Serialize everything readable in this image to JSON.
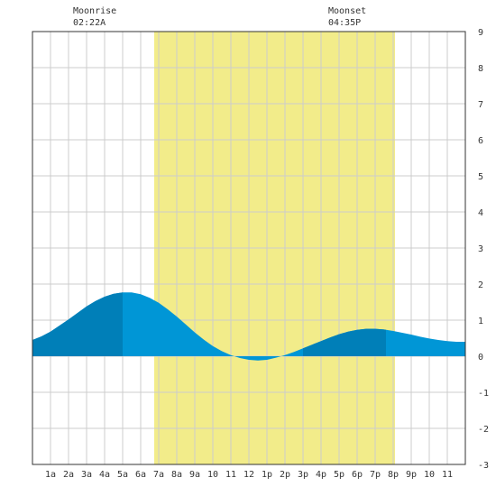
{
  "chart_data": {
    "type": "area",
    "title": "",
    "xlabel": "",
    "ylabel": "",
    "x_tick_labels": [
      "1a",
      "2a",
      "3a",
      "4a",
      "5a",
      "6a",
      "7a",
      "8a",
      "9a",
      "10",
      "11",
      "12",
      "1p",
      "2p",
      "3p",
      "4p",
      "5p",
      "6p",
      "7p",
      "8p",
      "9p",
      "10",
      "11"
    ],
    "x_range_hours": [
      0,
      24
    ],
    "y_ticks": [
      9,
      8,
      7,
      6,
      5,
      4,
      3,
      2,
      1,
      0,
      -1,
      -2,
      -3
    ],
    "ylim": [
      -3,
      9
    ],
    "grid": true,
    "daylight_hours": {
      "start": 6.75,
      "end": 20.1
    },
    "tide": {
      "hours": [
        0,
        0.5,
        1,
        1.5,
        2,
        2.5,
        3,
        3.5,
        4,
        4.5,
        5,
        5.5,
        6,
        6.5,
        7,
        7.5,
        8,
        8.5,
        9,
        9.5,
        10,
        10.5,
        11,
        11.5,
        12,
        12.5,
        13,
        13.5,
        14,
        14.5,
        15,
        15.5,
        16,
        16.5,
        17,
        17.5,
        18,
        18.5,
        19,
        19.5,
        20,
        20.5,
        21,
        21.5,
        22,
        22.5,
        23,
        23.5,
        24
      ],
      "heights": [
        0.45,
        0.55,
        0.68,
        0.85,
        1.02,
        1.2,
        1.38,
        1.53,
        1.65,
        1.73,
        1.77,
        1.77,
        1.72,
        1.62,
        1.48,
        1.3,
        1.1,
        0.88,
        0.66,
        0.46,
        0.28,
        0.14,
        0.03,
        -0.05,
        -0.1,
        -0.12,
        -0.1,
        -0.04,
        0.03,
        0.12,
        0.22,
        0.32,
        0.42,
        0.52,
        0.61,
        0.68,
        0.73,
        0.76,
        0.76,
        0.74,
        0.7,
        0.65,
        0.6,
        0.54,
        0.49,
        0.45,
        0.42,
        0.4,
        0.4
      ],
      "dark_bands": [
        [
          0,
          5
        ],
        [
          15,
          19.6
        ]
      ]
    },
    "moon": {
      "moonrise_label": "Moonrise",
      "moonrise_time": "02:22A",
      "moonset_label": "Moonset",
      "moonset_time": "04:35P"
    },
    "colors": {
      "daylight": "#f2ec8a",
      "tide_fill": "#0096d6",
      "tide_dark": "#007fb8",
      "grid": "#cccccc",
      "axis": "#333333"
    }
  }
}
